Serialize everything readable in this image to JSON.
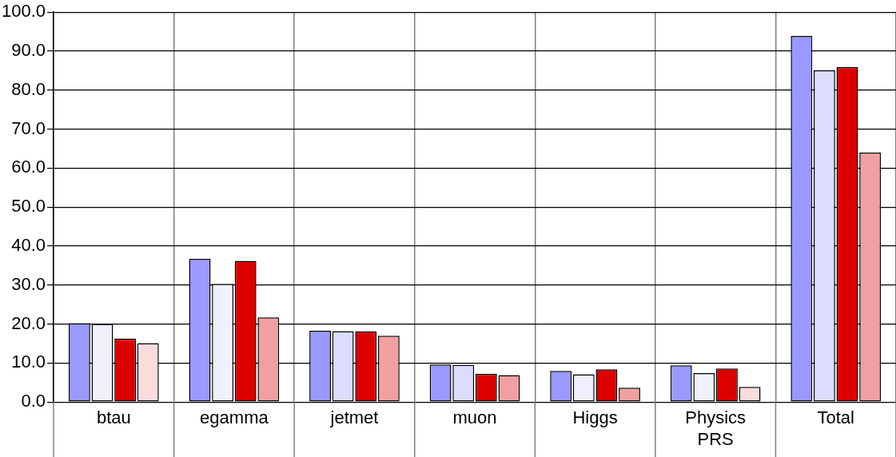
{
  "chart_data": {
    "type": "bar",
    "categories": [
      "btau",
      "egamma",
      "jetmet",
      "muon",
      "Higgs",
      "Physics PRS",
      "Total"
    ],
    "series": [
      {
        "color": "#9999ff",
        "values": [
          20.2,
          36.7,
          18.3,
          9.6,
          8.0,
          9.4,
          93.9
        ]
      },
      {
        "colors": [
          "#f0f0ff",
          "#f0f0ff",
          "#dcdcff",
          "#dcdcff",
          "#f0f0ff",
          "#f0f0ff",
          "#dcdcff"
        ],
        "values": [
          20.0,
          30.3,
          18.2,
          9.5,
          7.1,
          7.4,
          85.1
        ]
      },
      {
        "color": "#dd0000",
        "values": [
          16.3,
          36.2,
          18.1,
          7.2,
          8.4,
          8.6,
          85.9
        ]
      },
      {
        "colors": [
          "#fadcdc",
          "#f0a0a0",
          "#f0a0a0",
          "#f0a0a0",
          "#f0a0a0",
          "#fadcdc",
          "#f0a0a0"
        ],
        "values": [
          15.1,
          21.7,
          17.0,
          6.9,
          3.7,
          3.9,
          64.0
        ]
      }
    ],
    "ylim": [
      0,
      100
    ],
    "yticks": [
      {
        "value": 0,
        "label": "0.0"
      },
      {
        "value": 10,
        "label": "10.0"
      },
      {
        "value": 20,
        "label": "20.0"
      },
      {
        "value": 30,
        "label": "30.0"
      },
      {
        "value": 40,
        "label": "40.0"
      },
      {
        "value": 50,
        "label": "50.0"
      },
      {
        "value": 60,
        "label": "60.0"
      },
      {
        "value": 70,
        "label": "70.0"
      },
      {
        "value": 80,
        "label": "80.0"
      },
      {
        "value": 90,
        "label": "90.0"
      },
      {
        "value": 100,
        "label": "100.0"
      }
    ],
    "grid": true,
    "legend": false
  }
}
